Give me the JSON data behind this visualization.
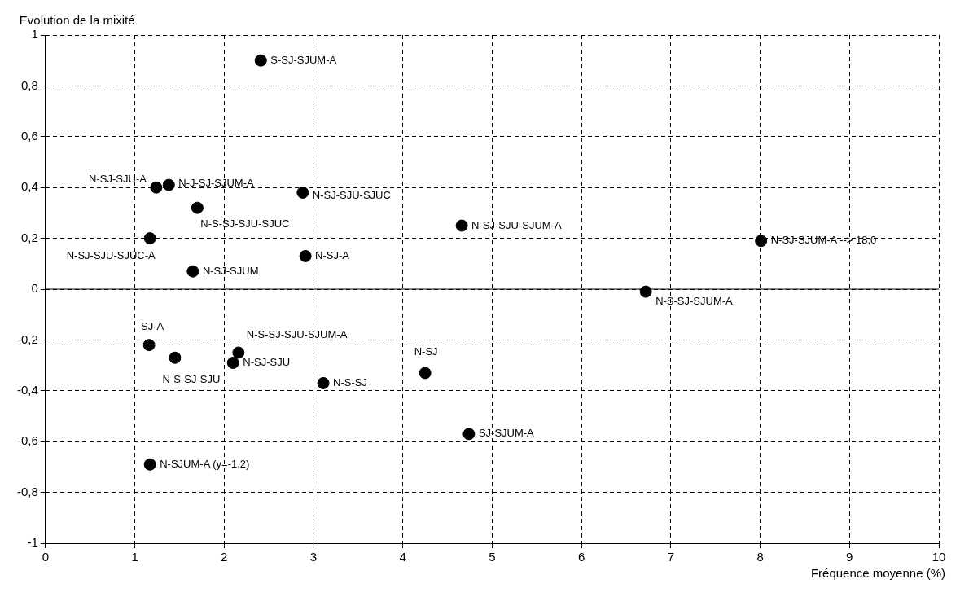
{
  "chart_data": {
    "type": "scatter",
    "xlabel": "Fréquence moyenne (%)",
    "ylabel": "Evolution de la mixité",
    "xlim": [
      0,
      10
    ],
    "xticks": [
      0,
      1,
      2,
      3,
      4,
      5,
      6,
      7,
      8,
      9,
      10
    ],
    "ylim": [
      -1,
      1
    ],
    "yticks": [
      {
        "value": -1,
        "label": "-1"
      },
      {
        "value": -0.8,
        "label": "-0,8"
      },
      {
        "value": -0.6,
        "label": "-0,6"
      },
      {
        "value": -0.4,
        "label": "-0,4"
      },
      {
        "value": -0.2,
        "label": "-0,2"
      },
      {
        "value": 0,
        "label": "0"
      },
      {
        "value": 0.2,
        "label": "0,2"
      },
      {
        "value": 0.4,
        "label": "0,4"
      },
      {
        "value": 0.6,
        "label": "0,6"
      },
      {
        "value": 0.8,
        "label": "0,8"
      },
      {
        "value": 1,
        "label": "1"
      }
    ],
    "grid": true,
    "marker": "circle",
    "legend": false,
    "ref_lines": [
      {
        "axis": "y",
        "value": 0,
        "color": "#000000",
        "line_style": "solid"
      }
    ],
    "series": [
      {
        "color": "#000000",
        "x": [
          2.41,
          1.24,
          1.38,
          2.88,
          1.7,
          4.66,
          8.01,
          1.17,
          2.91,
          1.65,
          6.72,
          1.16,
          1.45,
          2.16,
          2.1,
          3.11,
          4.25,
          4.74,
          1.17
        ],
        "values": [
          0.9,
          0.4,
          0.41,
          0.38,
          0.32,
          0.25,
          0.19,
          0.2,
          0.13,
          0.07,
          -0.01,
          -0.22,
          -0.27,
          -0.25,
          -0.29,
          -0.37,
          -0.33,
          -0.57,
          -0.69
        ]
      }
    ],
    "annotations": [
      {
        "text": "S-SJ-SJUM-A",
        "x": 2.41,
        "y": 0.9
      },
      {
        "text": "N-SJ-SJU-A",
        "x": 1.24,
        "y": 0.4
      },
      {
        "text": "N-J-SJ-SJUM-A",
        "x": 1.38,
        "y": 0.41
      },
      {
        "text": "N-SJ-SJU-SJUC",
        "x": 2.88,
        "y": 0.38
      },
      {
        "text": "N-S-SJ-SJU-SJUC",
        "x": 1.7,
        "y": 0.32
      },
      {
        "text": "N-SJ-SJU-SJUM-A",
        "x": 4.66,
        "y": 0.25
      },
      {
        "text": "N-SJ-SJUM-A --> 18,0",
        "x": 8.01,
        "y": 0.19
      },
      {
        "text": "N-SJ-SJU-SJUC-A",
        "x": 1.17,
        "y": 0.2
      },
      {
        "text": "N-SJ-A",
        "x": 2.91,
        "y": 0.13
      },
      {
        "text": "N-SJ-SJUM",
        "x": 1.65,
        "y": 0.07
      },
      {
        "text": "N-S-SJ-SJUM-A",
        "x": 6.72,
        "y": -0.01
      },
      {
        "text": "SJ-A",
        "x": 1.16,
        "y": -0.22
      },
      {
        "text": "N-S-SJ-SJU",
        "x": 1.45,
        "y": -0.27
      },
      {
        "text": "N-S-SJ-SJU-SJUM-A",
        "x": 2.16,
        "y": -0.25
      },
      {
        "text": "N-SJ-SJU",
        "x": 2.1,
        "y": -0.29
      },
      {
        "text": "N-S-SJ",
        "x": 3.11,
        "y": -0.37
      },
      {
        "text": "N-SJ",
        "x": 4.25,
        "y": -0.33
      },
      {
        "text": "SJ-SJUM-A",
        "x": 4.74,
        "y": -0.57
      },
      {
        "text": "N-SJUM-A (y=-1,2)",
        "x": 1.17,
        "y": -0.69
      }
    ]
  }
}
